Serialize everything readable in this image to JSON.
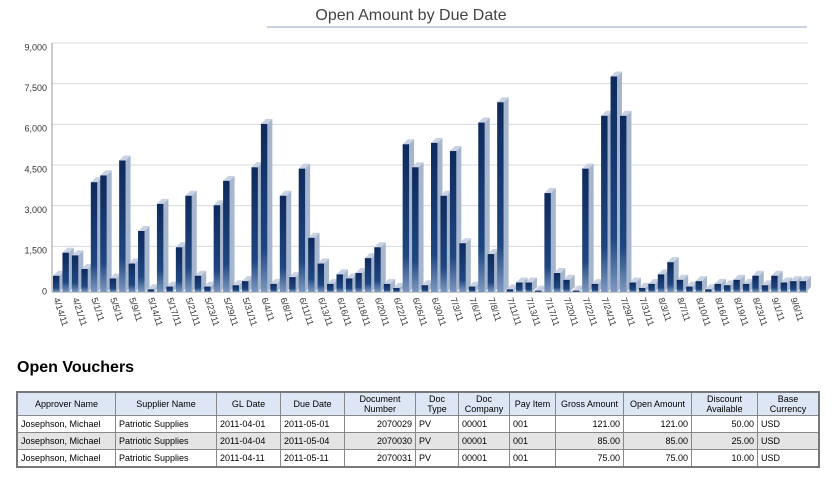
{
  "chart_data": {
    "type": "bar3d",
    "title": "Open Amount by Due Date",
    "categories": [
      "4/14/11",
      null,
      "4/21/11",
      null,
      "5/1/11",
      null,
      "5/5/11",
      null,
      "5/9/11",
      null,
      "5/14/11",
      null,
      "5/17/11",
      null,
      "5/21/11",
      null,
      "5/23/11",
      null,
      "5/29/11",
      null,
      "5/31/11",
      null,
      "6/4/11",
      null,
      "6/8/11",
      null,
      "6/11/11",
      null,
      "6/13/11",
      null,
      "6/16/11",
      null,
      "6/18/11",
      null,
      "6/20/11",
      null,
      "6/22/11",
      null,
      "6/26/11",
      null,
      "6/30/11",
      null,
      "7/3/11",
      null,
      "7/6/11",
      null,
      "7/8/11",
      null,
      "7/11/11",
      null,
      "7/13/11",
      null,
      "7/17/11",
      null,
      "7/20/11",
      null,
      "7/22/11",
      null,
      "7/24/11",
      null,
      "7/29/11",
      null,
      "7/31/11",
      null,
      "8/3/11",
      null,
      "8/7/11",
      null,
      "8/10/11",
      null,
      "8/16/11",
      null,
      "8/19/11",
      null,
      "8/23/11",
      null,
      "9/1/11",
      null,
      "9/6/11",
      null
    ],
    "values": [
      600,
      1450,
      1350,
      850,
      4050,
      4300,
      500,
      4850,
      1050,
      2250,
      100,
      3250,
      200,
      1650,
      3550,
      600,
      200,
      3200,
      4100,
      250,
      400,
      4600,
      6200,
      300,
      3550,
      550,
      4550,
      2000,
      1050,
      300,
      650,
      500,
      700,
      1250,
      1650,
      300,
      150,
      5450,
      4600,
      250,
      5500,
      3550,
      5200,
      1800,
      200,
      6250,
      1400,
      7000,
      100,
      350,
      350,
      50,
      3650,
      700,
      450,
      50,
      4550,
      300,
      6500,
      7950,
      6500,
      350,
      150,
      300,
      650,
      1100,
      450,
      200,
      400,
      100,
      300,
      250,
      450,
      300,
      600,
      250,
      600,
      350,
      400,
      400
    ],
    "color": "#12336b",
    "side_color": "#a7b6cf",
    "ylim": [
      0,
      9000
    ],
    "yticks": [
      0,
      {
        "value": 1500,
        "label": "1,500"
      },
      {
        "value": 3000,
        "label": "3,000"
      },
      {
        "value": 4500,
        "label": "4,500"
      },
      {
        "value": 6000,
        "label": "6,000"
      },
      {
        "value": 7500,
        "label": "7,500"
      },
      {
        "value": 9000,
        "label": "9,000"
      }
    ],
    "grid": true
  },
  "table": {
    "title": "Open Vouchers",
    "columns": [
      "Approver Name",
      "Supplier Name",
      "GL Date",
      "Due Date",
      "Document Number",
      "Doc Type",
      "Doc Company",
      "Pay Item",
      "Gross Amount",
      "Open Amount",
      "Discount Available",
      "Base Currency"
    ],
    "rows": [
      [
        "Josephson, Michael",
        "Patriotic Supplies",
        "2011-04-01",
        "2011-05-01",
        "2070029",
        "PV",
        "00001",
        "001",
        "121.00",
        "121.00",
        "50.00",
        "USD"
      ],
      [
        "Josephson, Michael",
        "Patriotic Supplies",
        "2011-04-04",
        "2011-05-04",
        "2070030",
        "PV",
        "00001",
        "001",
        "85.00",
        "85.00",
        "25.00",
        "USD"
      ],
      [
        "Josephson, Michael",
        "Patriotic Supplies",
        "2011-04-11",
        "2011-05-11",
        "2070031",
        "PV",
        "00001",
        "001",
        "75.00",
        "75.00",
        "10.00",
        "USD"
      ]
    ]
  }
}
